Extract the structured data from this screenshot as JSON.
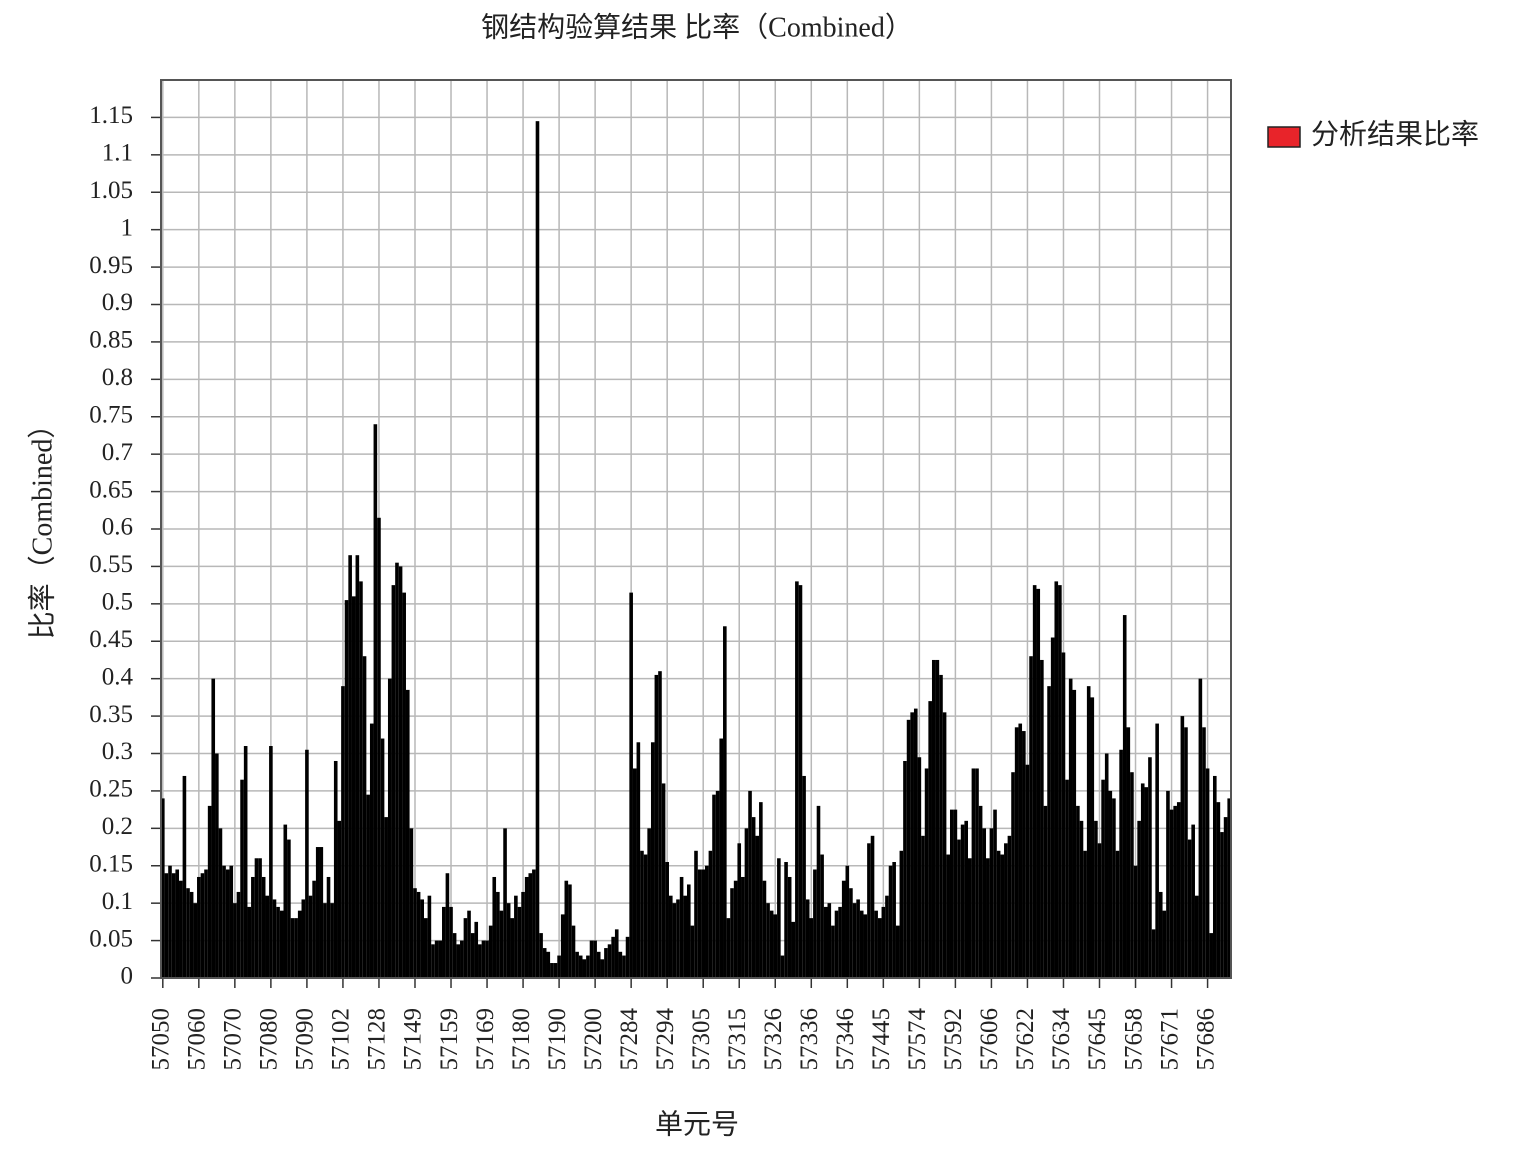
{
  "chart_data": {
    "type": "bar",
    "title": "钢结构验算结果 比率（Combined）",
    "x_label": "单元号",
    "y_label": "比率（Combined）",
    "series": [
      {
        "name": "分析结果比率",
        "color": "#000000",
        "legend_color": "#e8242a",
        "values": [
          0.24,
          0.14,
          0.15,
          0.14,
          0.145,
          0.13,
          0.27,
          0.12,
          0.115,
          0.1,
          0.135,
          0.14,
          0.145,
          0.23,
          0.4,
          0.3,
          0.2,
          0.15,
          0.145,
          0.15,
          0.1,
          0.115,
          0.265,
          0.31,
          0.095,
          0.135,
          0.16,
          0.16,
          0.135,
          0.11,
          0.31,
          0.105,
          0.095,
          0.09,
          0.205,
          0.185,
          0.08,
          0.08,
          0.09,
          0.105,
          0.305,
          0.11,
          0.13,
          0.175,
          0.175,
          0.1,
          0.135,
          0.1,
          0.29,
          0.21,
          0.39,
          0.505,
          0.565,
          0.51,
          0.565,
          0.53,
          0.43,
          0.245,
          0.34,
          0.74,
          0.615,
          0.32,
          0.215,
          0.4,
          0.525,
          0.555,
          0.55,
          0.515,
          0.385,
          0.2,
          0.12,
          0.115,
          0.105,
          0.08,
          0.11,
          0.045,
          0.05,
          0.05,
          0.095,
          0.14,
          0.095,
          0.06,
          0.045,
          0.05,
          0.08,
          0.09,
          0.06,
          0.075,
          0.045,
          0.05,
          0.05,
          0.07,
          0.135,
          0.115,
          0.09,
          0.2,
          0.1,
          0.08,
          0.11,
          0.095,
          0.115,
          0.135,
          0.14,
          0.145,
          1.145,
          0.06,
          0.04,
          0.035,
          0.02,
          0.02,
          0.03,
          0.085,
          0.13,
          0.125,
          0.07,
          0.035,
          0.03,
          0.025,
          0.03,
          0.05,
          0.05,
          0.035,
          0.025,
          0.04,
          0.045,
          0.055,
          0.065,
          0.035,
          0.03,
          0.055,
          0.515,
          0.28,
          0.315,
          0.17,
          0.165,
          0.2,
          0.315,
          0.405,
          0.41,
          0.26,
          0.155,
          0.11,
          0.1,
          0.105,
          0.135,
          0.11,
          0.125,
          0.07,
          0.17,
          0.145,
          0.145,
          0.15,
          0.17,
          0.245,
          0.25,
          0.32,
          0.47,
          0.08,
          0.12,
          0.13,
          0.18,
          0.135,
          0.2,
          0.25,
          0.215,
          0.19,
          0.235,
          0.13,
          0.1,
          0.09,
          0.085,
          0.16,
          0.03,
          0.155,
          0.135,
          0.075,
          0.53,
          0.525,
          0.27,
          0.105,
          0.08,
          0.145,
          0.23,
          0.165,
          0.095,
          0.1,
          0.07,
          0.09,
          0.095,
          0.13,
          0.15,
          0.12,
          0.1,
          0.105,
          0.09,
          0.085,
          0.18,
          0.19,
          0.09,
          0.08,
          0.095,
          0.11,
          0.15,
          0.155,
          0.07,
          0.17,
          0.29,
          0.345,
          0.355,
          0.36,
          0.295,
          0.19,
          0.28,
          0.37,
          0.425,
          0.425,
          0.405,
          0.355,
          0.165,
          0.225,
          0.225,
          0.185,
          0.205,
          0.21,
          0.16,
          0.28,
          0.28,
          0.23,
          0.2,
          0.16,
          0.2,
          0.225,
          0.17,
          0.165,
          0.18,
          0.19,
          0.275,
          0.335,
          0.34,
          0.33,
          0.285,
          0.43,
          0.525,
          0.52,
          0.425,
          0.23,
          0.39,
          0.455,
          0.53,
          0.525,
          0.435,
          0.265,
          0.4,
          0.385,
          0.23,
          0.21,
          0.17,
          0.39,
          0.375,
          0.21,
          0.18,
          0.265,
          0.3,
          0.25,
          0.24,
          0.17,
          0.305,
          0.485,
          0.335,
          0.275,
          0.15,
          0.21,
          0.26,
          0.255,
          0.295,
          0.065,
          0.34,
          0.115,
          0.09,
          0.25,
          0.225,
          0.23,
          0.235,
          0.35,
          0.335,
          0.185,
          0.205,
          0.11,
          0.4,
          0.335,
          0.28,
          0.06,
          0.27,
          0.235,
          0.195,
          0.215,
          0.24
        ]
      }
    ],
    "categories": [
      "57050",
      null,
      null,
      null,
      null,
      null,
      null,
      null,
      null,
      null,
      "57060",
      null,
      null,
      null,
      null,
      null,
      null,
      null,
      null,
      null,
      "57070",
      null,
      null,
      null,
      null,
      null,
      null,
      null,
      null,
      null,
      "57080",
      null,
      null,
      null,
      null,
      null,
      null,
      null,
      null,
      null,
      "57090",
      null,
      null,
      null,
      null,
      null,
      null,
      null,
      null,
      null,
      "57102",
      null,
      null,
      null,
      null,
      null,
      null,
      null,
      null,
      null,
      "57128",
      null,
      null,
      null,
      null,
      null,
      null,
      null,
      null,
      null,
      "57149",
      null,
      null,
      null,
      null,
      null,
      null,
      null,
      null,
      null,
      "57159",
      null,
      null,
      null,
      null,
      null,
      null,
      null,
      null,
      null,
      "57169",
      null,
      null,
      null,
      null,
      null,
      null,
      null,
      null,
      null,
      "57180",
      null,
      null,
      null,
      null,
      null,
      null,
      null,
      null,
      null,
      "57190",
      null,
      null,
      null,
      null,
      null,
      null,
      null,
      null,
      null,
      "57200",
      null,
      null,
      null,
      null,
      null,
      null,
      null,
      null,
      null,
      "57284",
      null,
      null,
      null,
      null,
      null,
      null,
      null,
      null,
      null,
      "57294",
      null,
      null,
      null,
      null,
      null,
      null,
      null,
      null,
      null,
      "57305",
      null,
      null,
      null,
      null,
      null,
      null,
      null,
      null,
      null,
      "57315",
      null,
      null,
      null,
      null,
      null,
      null,
      null,
      null,
      null,
      "57326",
      null,
      null,
      null,
      null,
      null,
      null,
      null,
      null,
      null,
      "57336",
      null,
      null,
      null,
      null,
      null,
      null,
      null,
      null,
      null,
      "57346",
      null,
      null,
      null,
      null,
      null,
      null,
      null,
      null,
      null,
      "57445",
      null,
      null,
      null,
      null,
      null,
      null,
      null,
      null,
      null,
      "57574",
      null,
      null,
      null,
      null,
      null,
      null,
      null,
      null,
      null,
      "57592",
      null,
      null,
      null,
      null,
      null,
      null,
      null,
      null,
      null,
      "57606",
      null,
      null,
      null,
      null,
      null,
      null,
      null,
      null,
      null,
      "57622",
      null,
      null,
      null,
      null,
      null,
      null,
      null,
      null,
      null,
      "57634",
      null,
      null,
      null,
      null,
      null,
      null,
      null,
      null,
      null,
      "57645",
      null,
      null,
      null,
      null,
      null,
      null,
      null,
      null,
      null,
      "57658",
      null,
      null,
      null,
      null,
      null,
      null,
      null,
      null,
      null,
      "57671",
      null,
      null,
      null,
      null,
      null,
      null,
      null,
      null,
      null,
      "57686",
      null,
      null,
      null,
      null,
      null,
      null
    ],
    "ylim": [
      0,
      1.2
    ],
    "yticks": [
      0,
      0.05,
      0.1,
      0.15,
      0.2,
      0.25,
      0.3,
      0.35,
      0.4,
      0.45,
      0.5,
      0.55,
      0.6,
      0.65,
      0.7,
      0.75,
      0.8,
      0.85,
      0.9,
      0.95,
      1,
      1.05,
      1.1,
      1.15
    ],
    "grid": true,
    "legend": "right"
  }
}
